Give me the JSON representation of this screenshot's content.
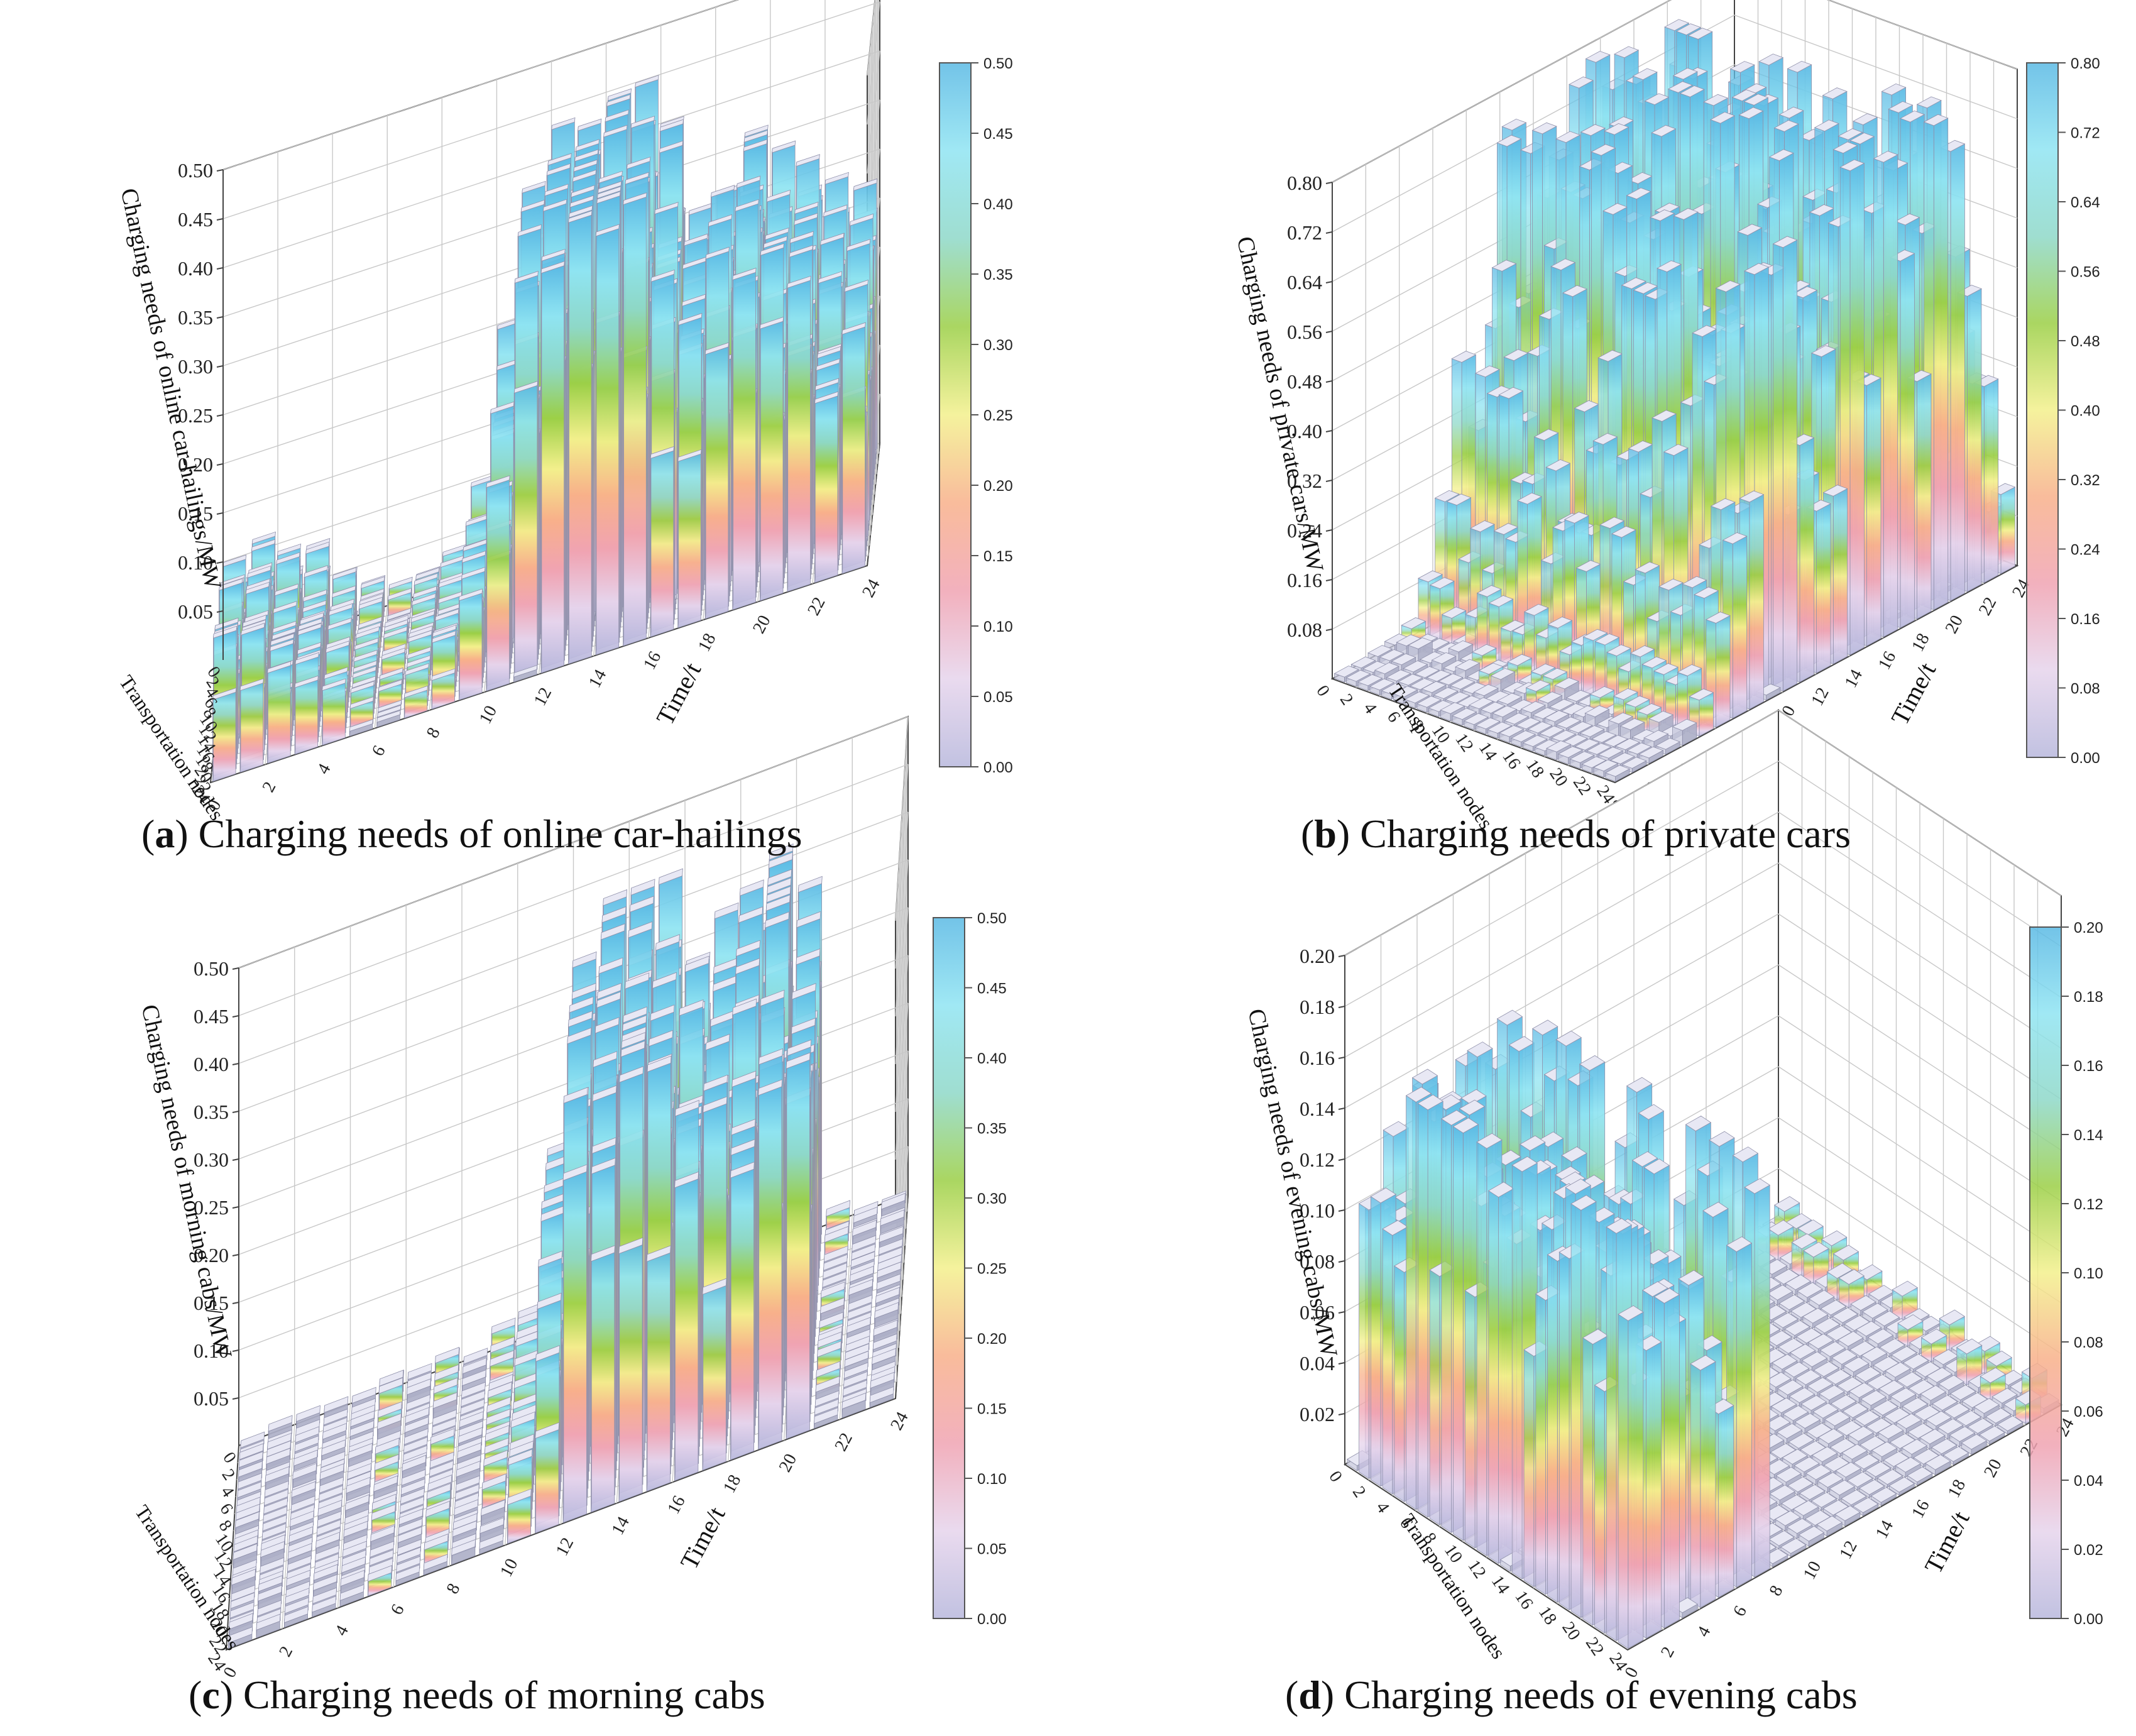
{
  "figure": {
    "panels": [
      {
        "letter": "a",
        "caption": "Charging needs of online car-hailings"
      },
      {
        "letter": "b",
        "caption": "Charging needs of private cars"
      },
      {
        "letter": "c",
        "caption": "Charging needs of morning cabs"
      },
      {
        "letter": "d",
        "caption": "Charging needs of evening cabs"
      }
    ]
  },
  "colors": {
    "colormap": [
      "#b7b7dc",
      "#e6d4ec",
      "#f0a3b2",
      "#f8b08a",
      "#f3f08c",
      "#9bcf46",
      "#8ed8c8",
      "#8fe4f2",
      "#5ab9e4"
    ],
    "bar_side": "#c7c8dc",
    "bar_front": "#aeb0c8",
    "grid": "#c8c8c8",
    "axis": "#444444"
  },
  "chart_data": [
    {
      "type": "bar3d",
      "panel": "a",
      "title": "Charging needs of online car-hailings",
      "zlabel": "Charging needs of online car-hailings/MW",
      "xlabel": "Time/t",
      "ylabel": "Transportation nodes",
      "zlim": [
        0,
        0.5
      ],
      "z_ticks": [
        "0.05",
        "0.10",
        "0.15",
        "0.20",
        "0.25",
        "0.30",
        "0.35",
        "0.40",
        "0.45",
        "0.50"
      ],
      "x_ticks": [
        "0",
        "2",
        "4",
        "6",
        "8",
        "10",
        "12",
        "14",
        "16",
        "18",
        "20",
        "22",
        "24"
      ],
      "y_ticks": [
        "0",
        "2",
        "4",
        "6",
        "8",
        "10",
        "12",
        "14",
        "16",
        "18",
        "20",
        "22",
        "24"
      ],
      "colorbar_ticks": [
        "0.00",
        "0.05",
        "0.10",
        "0.15",
        "0.20",
        "0.25",
        "0.30",
        "0.35",
        "0.40",
        "0.45",
        "0.50"
      ],
      "profile": {
        "time": [
          1,
          2,
          3,
          4,
          5,
          6,
          7,
          8,
          9,
          10,
          11,
          12,
          13,
          14,
          15,
          16,
          17,
          18,
          19,
          20,
          21,
          22,
          23,
          24
        ],
        "mean_MW": [
          0.11,
          0.1,
          0.09,
          0.08,
          0.05,
          0.03,
          0.02,
          0.03,
          0.05,
          0.09,
          0.2,
          0.32,
          0.4,
          0.43,
          0.41,
          0.38,
          0.33,
          0.27,
          0.29,
          0.3,
          0.28,
          0.27,
          0.25,
          0.22
        ],
        "peak_MW": 0.45
      }
    },
    {
      "type": "bar3d",
      "panel": "b",
      "title": "Charging needs of private cars",
      "zlabel": "Charging needs of private cars/MW",
      "xlabel": "Time/t",
      "ylabel": "Transportation nodes",
      "zlim": [
        0,
        0.8
      ],
      "z_ticks": [
        "0.08",
        "0.16",
        "0.24",
        "0.32",
        "0.40",
        "0.48",
        "0.56",
        "0.64",
        "0.72",
        "0.80"
      ],
      "x_ticks": [
        "0",
        "2",
        "4",
        "6",
        "8",
        "10",
        "12",
        "14",
        "16",
        "18",
        "20",
        "22",
        "24"
      ],
      "y_ticks": [
        "0",
        "2",
        "4",
        "6",
        "8",
        "10",
        "12",
        "14",
        "16",
        "18",
        "20",
        "22",
        "24"
      ],
      "colorbar_ticks": [
        "0.00",
        "0.08",
        "0.16",
        "0.24",
        "0.32",
        "0.40",
        "0.48",
        "0.56",
        "0.64",
        "0.72",
        "0.80"
      ],
      "profile": {
        "time": [
          1,
          2,
          3,
          4,
          5,
          6,
          7,
          8,
          9,
          10,
          11,
          12,
          13,
          14,
          15,
          16,
          17,
          18,
          19,
          20,
          21,
          22,
          23,
          24
        ],
        "mean_MW": [
          0.01,
          0.01,
          0.01,
          0.02,
          0.03,
          0.08,
          0.2,
          0.35,
          0.52,
          0.66,
          0.6,
          0.42,
          0.25,
          0.4,
          0.62,
          0.74,
          0.7,
          0.5,
          0.62,
          0.72,
          0.66,
          0.5,
          0.3,
          0.1
        ],
        "peak_MW": 0.78
      }
    },
    {
      "type": "bar3d",
      "panel": "c",
      "title": "Charging needs of morning cabs",
      "zlabel": "Charging needs of morning cabs/MW",
      "xlabel": "Time/t",
      "ylabel": "Transportation nodes",
      "zlim": [
        0,
        0.5
      ],
      "z_ticks": [
        "0.05",
        "0.10",
        "0.15",
        "0.20",
        "0.25",
        "0.30",
        "0.35",
        "0.40",
        "0.45",
        "0.50"
      ],
      "x_ticks": [
        "0",
        "2",
        "4",
        "6",
        "8",
        "10",
        "12",
        "14",
        "16",
        "18",
        "20",
        "22",
        "24"
      ],
      "y_ticks": [
        "0",
        "2",
        "4",
        "6",
        "8",
        "10",
        "12",
        "14",
        "16",
        "18",
        "20",
        "22",
        "24"
      ],
      "colorbar_ticks": [
        "0.00",
        "0.05",
        "0.10",
        "0.15",
        "0.20",
        "0.25",
        "0.30",
        "0.35",
        "0.40",
        "0.45",
        "0.50"
      ],
      "profile": {
        "time": [
          1,
          2,
          3,
          4,
          5,
          6,
          7,
          8,
          9,
          10,
          11,
          12,
          13,
          14,
          15,
          16,
          17,
          18,
          19,
          20,
          21,
          22,
          23,
          24
        ],
        "mean_MW": [
          0.01,
          0.01,
          0.01,
          0.01,
          0.01,
          0.02,
          0.01,
          0.02,
          0.01,
          0.02,
          0.05,
          0.18,
          0.34,
          0.42,
          0.4,
          0.36,
          0.32,
          0.3,
          0.34,
          0.4,
          0.3,
          0.02,
          0.01,
          0.01
        ],
        "peak_MW": 0.43
      }
    },
    {
      "type": "bar3d",
      "panel": "d",
      "title": "Charging needs of evening cabs",
      "zlabel": "Charging needs of evening cabs/MW",
      "xlabel": "Time/t",
      "ylabel": "Transportation nodes",
      "zlim": [
        0,
        0.2
      ],
      "z_ticks": [
        "0.02",
        "0.04",
        "0.06",
        "0.08",
        "0.10",
        "0.12",
        "0.14",
        "0.16",
        "0.18",
        "0.20"
      ],
      "x_ticks": [
        "0",
        "2",
        "4",
        "6",
        "8",
        "10",
        "12",
        "14",
        "16",
        "18",
        "20",
        "22",
        "24"
      ],
      "y_ticks": [
        "0",
        "2",
        "4",
        "6",
        "8",
        "10",
        "12",
        "14",
        "16",
        "18",
        "20",
        "22",
        "24"
      ],
      "colorbar_ticks": [
        "0.00",
        "0.02",
        "0.04",
        "0.06",
        "0.08",
        "0.10",
        "0.12",
        "0.14",
        "0.16",
        "0.18",
        "0.20"
      ],
      "profile": {
        "time": [
          1,
          2,
          3,
          4,
          5,
          6,
          7,
          8,
          9,
          10,
          11,
          12,
          13,
          14,
          15,
          16,
          17,
          18,
          19,
          20,
          21,
          22,
          23,
          24
        ],
        "mean_MW": [
          0.15,
          0.13,
          0.12,
          0.11,
          0.1,
          0.1,
          0.11,
          0.14,
          0.0,
          0.0,
          0.0,
          0.0,
          0.0,
          0.0,
          0.0,
          0.0,
          0.0,
          0.0,
          0.0,
          0.0,
          0.0,
          0.0,
          0.01,
          0.01
        ],
        "peak_MW": 0.16
      }
    }
  ]
}
